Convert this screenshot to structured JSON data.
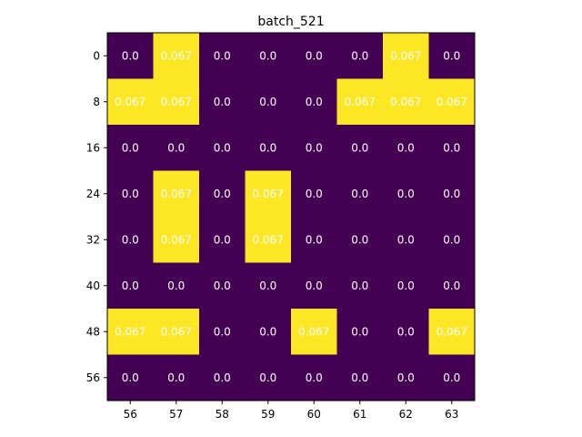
{
  "chart_data": {
    "type": "heatmap",
    "title": "batch_521",
    "xlabel": "",
    "ylabel": "",
    "x_ticks": [
      "56",
      "57",
      "58",
      "59",
      "60",
      "61",
      "62",
      "63"
    ],
    "y_ticks": [
      "0",
      "8",
      "16",
      "24",
      "32",
      "40",
      "48",
      "56"
    ],
    "values": [
      [
        0.0,
        0.067,
        0.0,
        0.0,
        0.0,
        0.0,
        0.067,
        0.0
      ],
      [
        0.067,
        0.067,
        0.0,
        0.0,
        0.0,
        0.067,
        0.067,
        0.067
      ],
      [
        0.0,
        0.0,
        0.0,
        0.0,
        0.0,
        0.0,
        0.0,
        0.0
      ],
      [
        0.0,
        0.067,
        0.0,
        0.067,
        0.0,
        0.0,
        0.0,
        0.0
      ],
      [
        0.0,
        0.067,
        0.0,
        0.067,
        0.0,
        0.0,
        0.0,
        0.0
      ],
      [
        0.0,
        0.0,
        0.0,
        0.0,
        0.0,
        0.0,
        0.0,
        0.0
      ],
      [
        0.067,
        0.067,
        0.0,
        0.0,
        0.067,
        0.0,
        0.0,
        0.067
      ],
      [
        0.0,
        0.0,
        0.0,
        0.0,
        0.0,
        0.0,
        0.0,
        0.0
      ]
    ],
    "value_labels": [
      [
        "0.0",
        "0.067",
        "0.0",
        "0.0",
        "0.0",
        "0.0",
        "0.067",
        "0.0"
      ],
      [
        "0.067",
        "0.067",
        "0.0",
        "0.0",
        "0.0",
        "0.067",
        "0.067",
        "0.067"
      ],
      [
        "0.0",
        "0.0",
        "0.0",
        "0.0",
        "0.0",
        "0.0",
        "0.0",
        "0.0"
      ],
      [
        "0.0",
        "0.067",
        "0.0",
        "0.067",
        "0.0",
        "0.0",
        "0.0",
        "0.0"
      ],
      [
        "0.0",
        "0.067",
        "0.0",
        "0.067",
        "0.0",
        "0.0",
        "0.0",
        "0.0"
      ],
      [
        "0.0",
        "0.0",
        "0.0",
        "0.0",
        "0.0",
        "0.0",
        "0.0",
        "0.0"
      ],
      [
        "0.067",
        "0.067",
        "0.0",
        "0.0",
        "0.067",
        "0.0",
        "0.0",
        "0.067"
      ],
      [
        "0.0",
        "0.0",
        "0.0",
        "0.0",
        "0.0",
        "0.0",
        "0.0",
        "0.0"
      ]
    ],
    "value_range": [
      0.0,
      0.067
    ],
    "colormap": {
      "low": "#440154",
      "high": "#fde725"
    },
    "grid": false,
    "legend": "none"
  }
}
